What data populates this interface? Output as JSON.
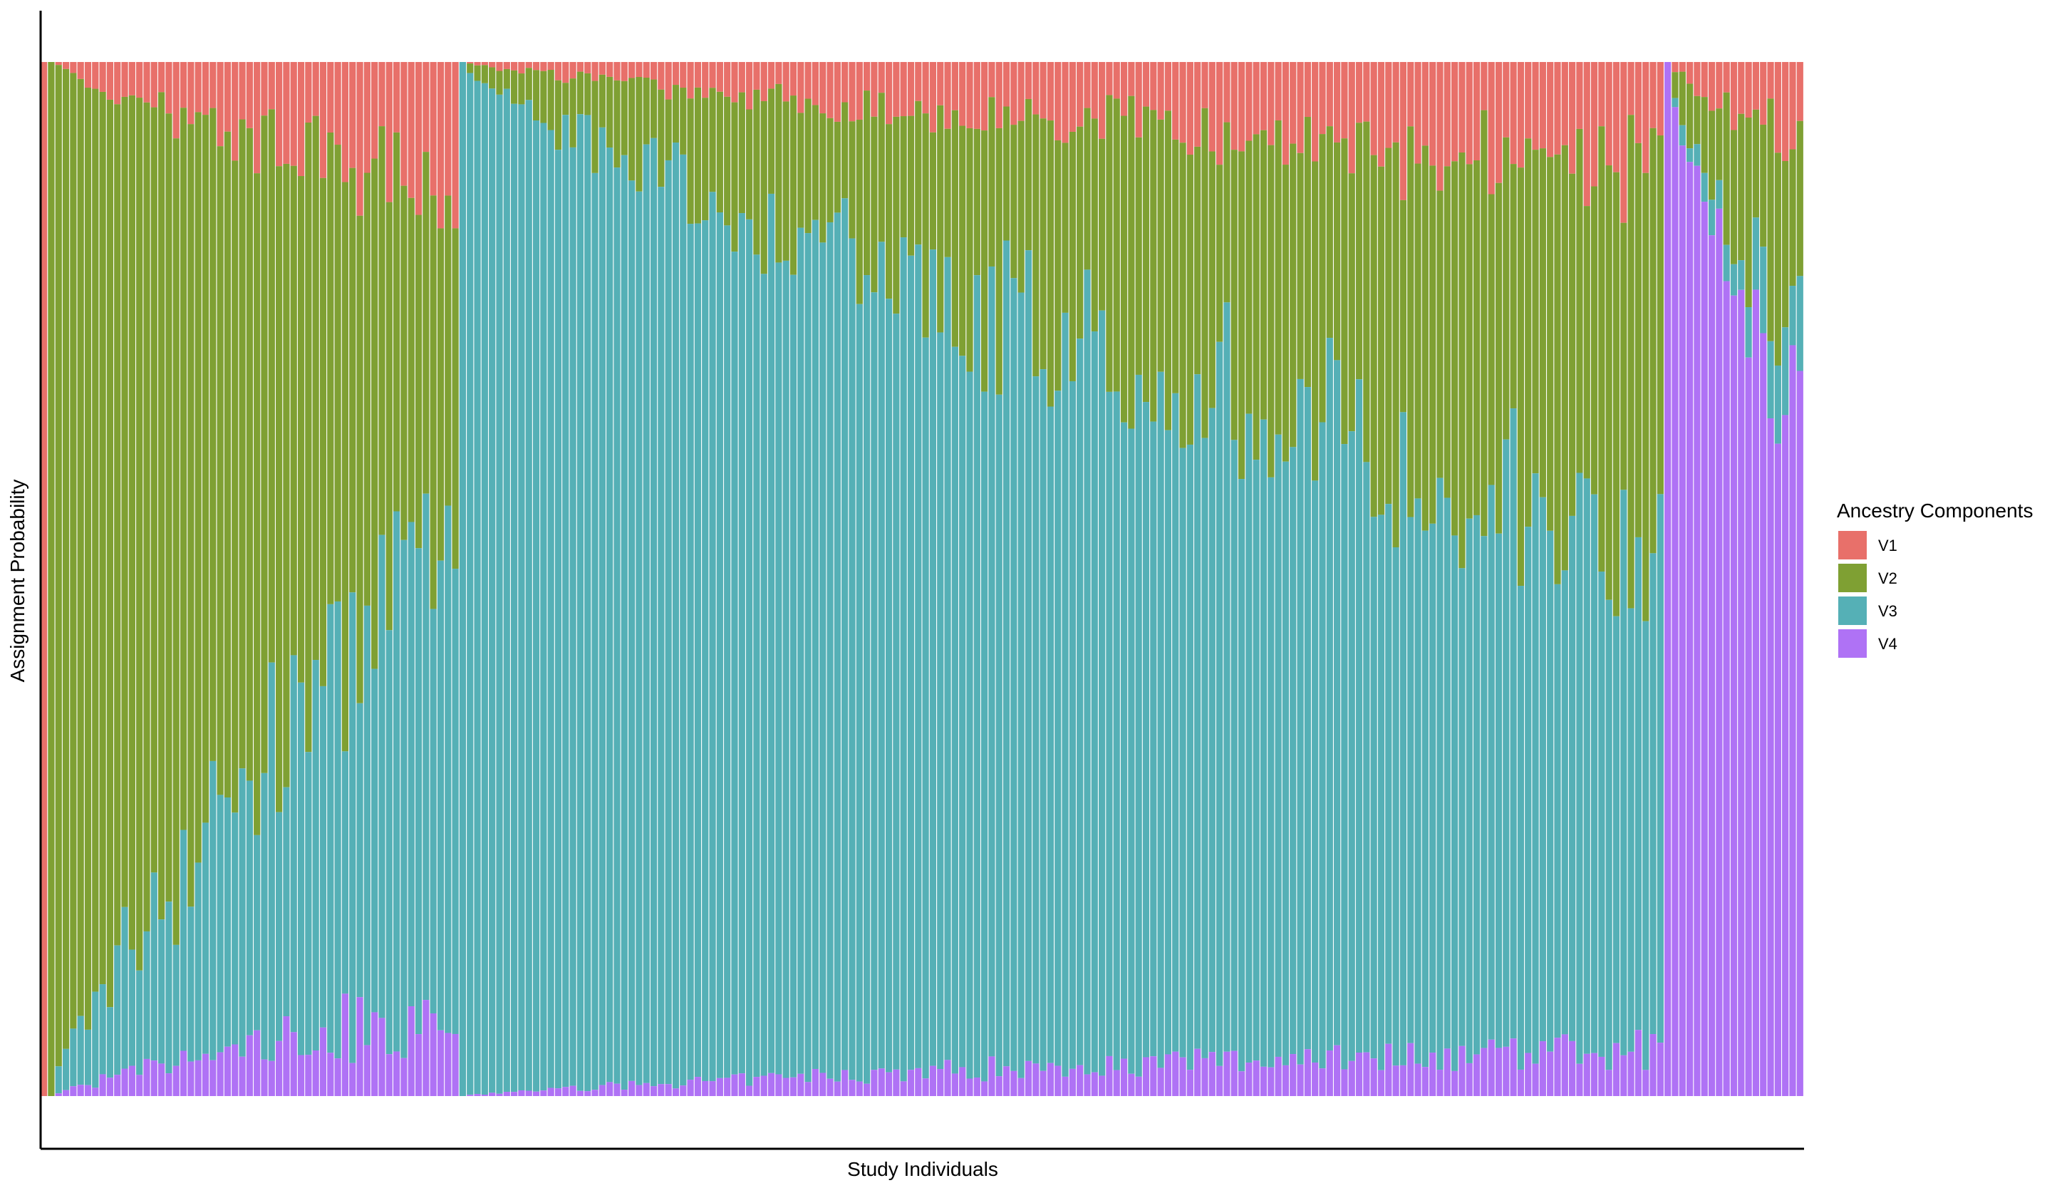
{
  "chart_data": {
    "type": "bar",
    "stacked": true,
    "normalized": true,
    "title": "",
    "xlabel": "Study Individuals",
    "ylabel": "Assignment Probability",
    "ylim": [
      0,
      1
    ],
    "x_tick_labels": "none",
    "y_tick_labels": "none",
    "grid": false,
    "legend": {
      "title": "Ancestry Components",
      "placement": "right",
      "entries": [
        {
          "name": "V1",
          "color": "#E8706A"
        },
        {
          "name": "V2",
          "color": "#7FA033"
        },
        {
          "name": "V3",
          "color": "#55B0B6"
        },
        {
          "name": "V4",
          "color": "#AF72F5"
        }
      ]
    },
    "stack_order_top_to_bottom": [
      "V1",
      "V2",
      "V3",
      "V4"
    ],
    "individual_count": 240,
    "groups": [
      {
        "rank": 1,
        "dominant": "V1",
        "individuals": 1,
        "start": {
          "V1": 1.0,
          "V2": 0.0,
          "V3": 0.0,
          "V4": 0.0
        },
        "end": {
          "V1": 1.0,
          "V2": 0.0,
          "V3": 0.0,
          "V4": 0.0
        }
      },
      {
        "rank": 2,
        "dominant": "V2",
        "individuals": 56,
        "start": {
          "V1": 0.0,
          "V2": 1.0,
          "V3": 0.0,
          "V4": 0.0
        },
        "end": {
          "V1": 0.13,
          "V2": 0.32,
          "V3": 0.47,
          "V4": 0.08
        }
      },
      {
        "rank": 3,
        "dominant": "V3",
        "individuals": 164,
        "start": {
          "V1": 0.0,
          "V2": 0.0,
          "V3": 1.0,
          "V4": 0.0
        },
        "end": {
          "V1": 0.1,
          "V2": 0.38,
          "V3": 0.47,
          "V4": 0.05
        }
      },
      {
        "rank": 4,
        "dominant": "V4",
        "individuals": 19,
        "start": {
          "V1": 0.0,
          "V2": 0.0,
          "V3": 0.0,
          "V4": 1.0
        },
        "end": {
          "V1": 0.08,
          "V2": 0.22,
          "V3": 0.08,
          "V4": 0.62
        }
      }
    ]
  }
}
